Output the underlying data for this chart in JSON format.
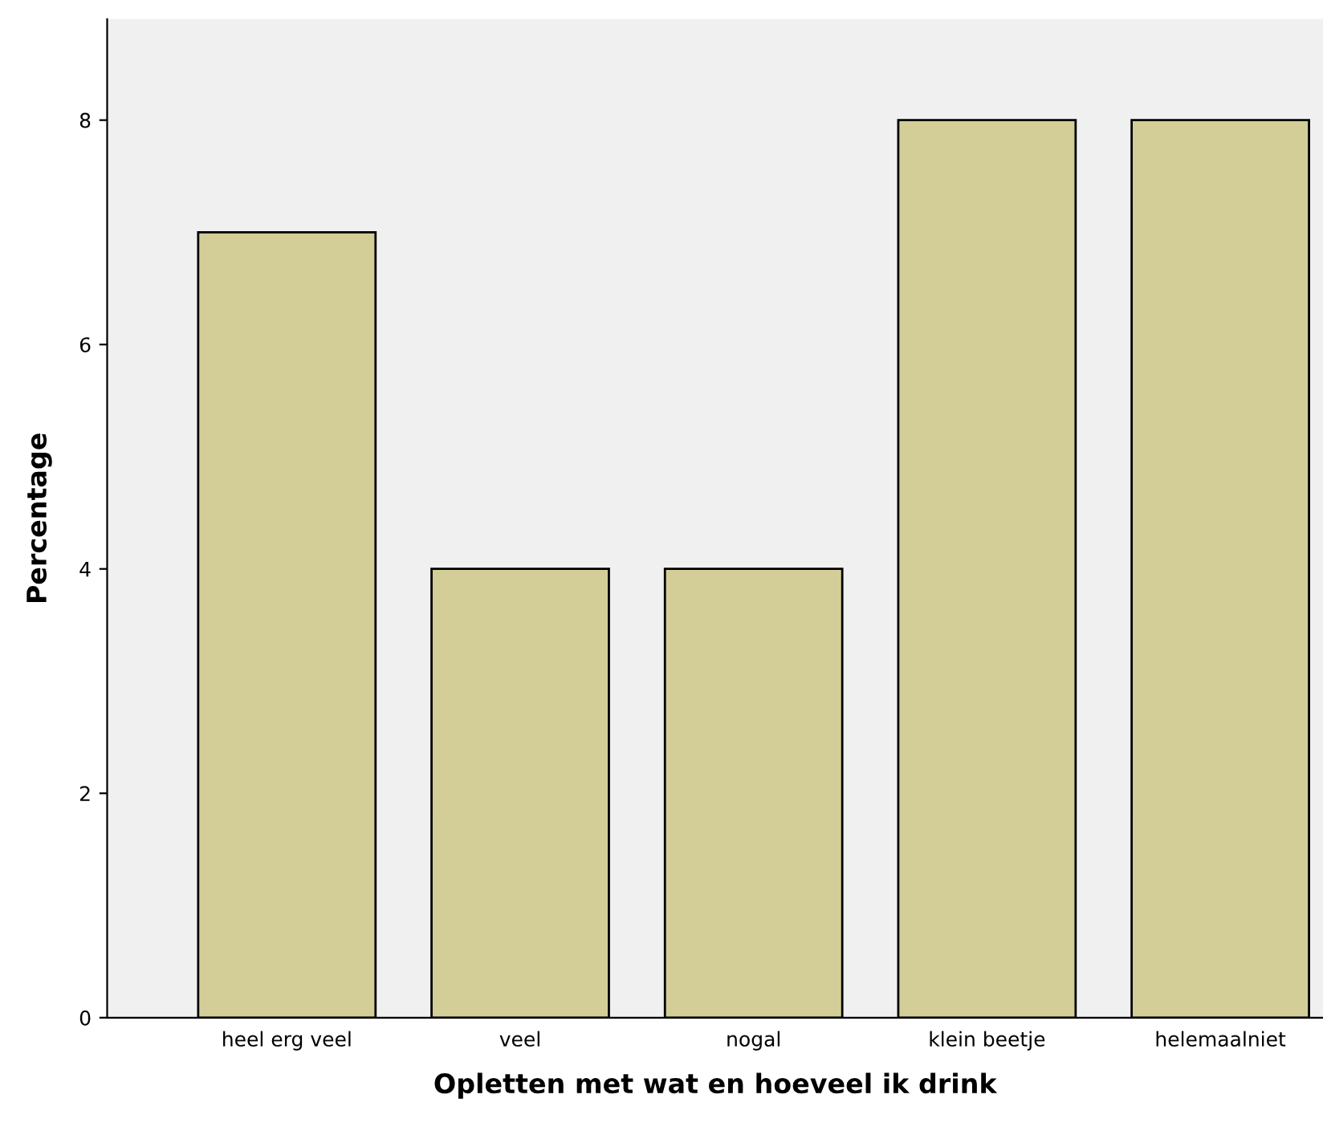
{
  "chart_data": {
    "type": "bar",
    "xlabel": "Opletten met wat en hoeveel ik drink",
    "ylabel": "Percentage",
    "categories": [
      "heel erg veel",
      "veel",
      "nogal",
      "klein beetje",
      "helemaalniet"
    ],
    "values": [
      7,
      4,
      4,
      8,
      8
    ],
    "color": "#d3ce97",
    "ylim": [
      0,
      8.9
    ],
    "yticks": [
      0,
      2,
      4,
      6,
      8
    ],
    "grid": false,
    "legend": false
  }
}
